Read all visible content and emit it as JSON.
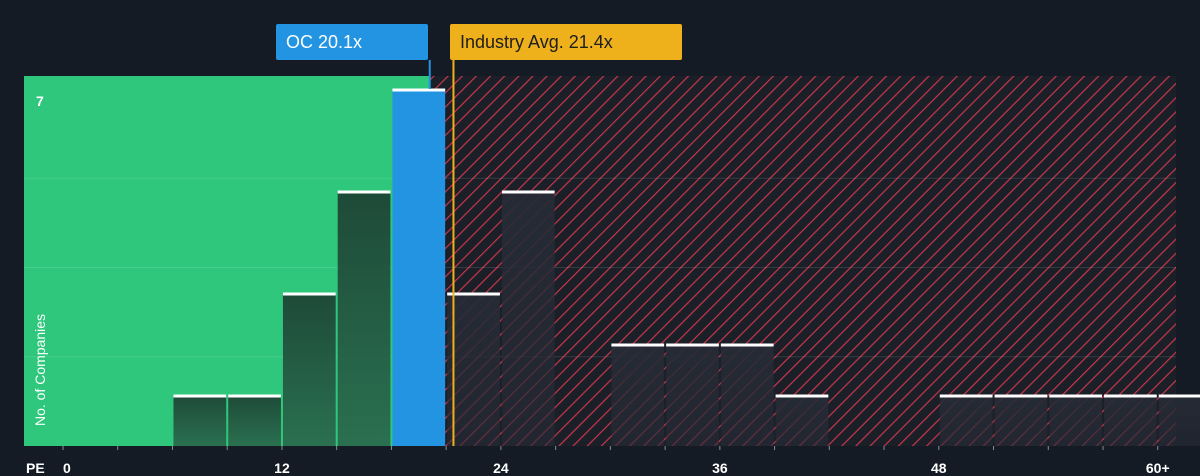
{
  "colors": {
    "background": "#151b24",
    "undervalued_zone": "#2ec77b",
    "overvalued_hatch": "#c8374a",
    "company_bar": "#2394e1",
    "industry_marker": "#eeb11b",
    "bar_fill_dark": "#1d4a37",
    "bar_cap": "#ffffff"
  },
  "labels": {
    "company": "OC 20.1x",
    "industry": "Industry Avg. 21.4x"
  },
  "chart_data": {
    "type": "bar",
    "xlabel": "PE",
    "ylabel": "No. of Companies",
    "x_ticks": [
      "0",
      "12",
      "24",
      "36",
      "48",
      "60+"
    ],
    "x_tick_values": [
      0,
      12,
      24,
      36,
      48,
      60
    ],
    "x_range": [
      0,
      61
    ],
    "y_range": [
      0,
      7
    ],
    "y_tick_labels": [
      "7"
    ],
    "grid": true,
    "bin_width": 3,
    "bins": [
      {
        "start": 6,
        "count": 1
      },
      {
        "start": 9,
        "count": 1
      },
      {
        "start": 12,
        "count": 3
      },
      {
        "start": 15,
        "count": 5
      },
      {
        "start": 18,
        "count": 7,
        "highlight": true
      },
      {
        "start": 21,
        "count": 3
      },
      {
        "start": 24,
        "count": 5
      },
      {
        "start": 30,
        "count": 2
      },
      {
        "start": 33,
        "count": 2
      },
      {
        "start": 36,
        "count": 2
      },
      {
        "start": 39,
        "count": 1
      },
      {
        "start": 48,
        "count": 1
      },
      {
        "start": 51,
        "count": 1
      },
      {
        "start": 54,
        "count": 1
      },
      {
        "start": 57,
        "count": 1
      },
      {
        "start": 60,
        "count": 1
      }
    ],
    "company_value": 20.1,
    "industry_avg": 21.4
  }
}
